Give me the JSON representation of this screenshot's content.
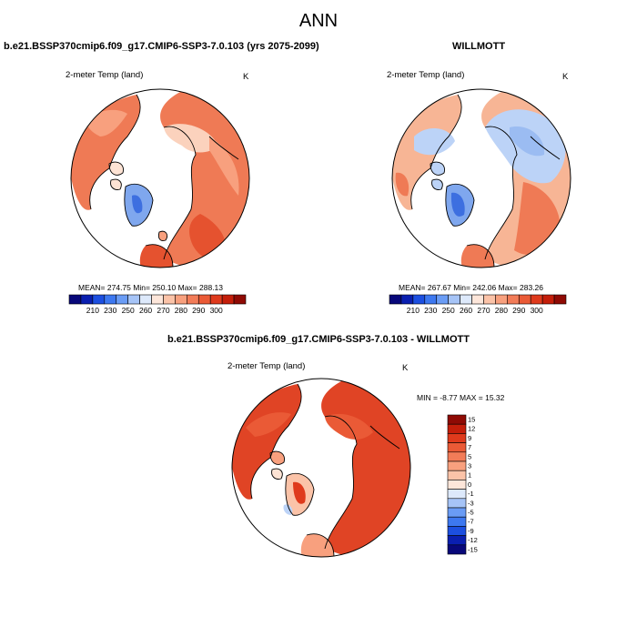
{
  "page": {
    "title": "ANN"
  },
  "panels": [
    {
      "header": "b.e21.BSSP370cmip6.f09_g17.CMIP6-SSP3-7.0.103 (yrs 2075-2099)",
      "variable": "2-meter Temp (land)",
      "units": "K",
      "stats": "MEAN= 274.75   Min= 250.10   Max= 288.13"
    },
    {
      "header": "WILLMOTT",
      "variable": "2-meter Temp (land)",
      "units": "K",
      "stats": "MEAN= 267.67   Min= 242.06   Max= 283.26"
    },
    {
      "header": "b.e21.BSSP370cmip6.f09_g17.CMIP6-SSP3-7.0.103 - WILLMOTT",
      "variable": "2-meter Temp (land)",
      "units": "K",
      "stats": "MIN =  -8.77 MAX =  15.32"
    }
  ],
  "colorbar_abs": {
    "colors": [
      "#08087a",
      "#0a1fb0",
      "#1c4fe0",
      "#3d78f0",
      "#6a9cf5",
      "#a6c4f7",
      "#dde9fb",
      "#fde6da",
      "#fbc3a8",
      "#f8a07e",
      "#f27c58",
      "#ea5a36",
      "#df3a1c",
      "#c41e0a",
      "#8f0a04"
    ],
    "ticks": [
      "210",
      "230",
      "250",
      "260",
      "270",
      "280",
      "290",
      "300"
    ]
  },
  "colorbar_diff": {
    "colors": [
      "#8f0a04",
      "#c41e0a",
      "#df3a1c",
      "#ea5a36",
      "#f27c58",
      "#f8a07e",
      "#fbc3a8",
      "#fde6da",
      "#dde9fb",
      "#a6c4f7",
      "#6a9cf5",
      "#3d78f0",
      "#1c4fe0",
      "#0a1fb0",
      "#08087a"
    ],
    "labels": [
      "15",
      "12",
      "9",
      "7",
      "5",
      "3",
      "1",
      "0",
      "-1",
      "-3",
      "-5",
      "-7",
      "-9",
      "-12",
      "-15"
    ]
  },
  "map_colors": {
    "warm_dark": "#e5522f",
    "warm_mid": "#ef7a55",
    "warm_light": "#f7b595",
    "pale": "#fde3d4",
    "cold_light": "#bcd3f7",
    "cold_mid": "#7fa7ee",
    "cold_dark": "#3d6fe0",
    "diff_strong": "#e04425"
  }
}
